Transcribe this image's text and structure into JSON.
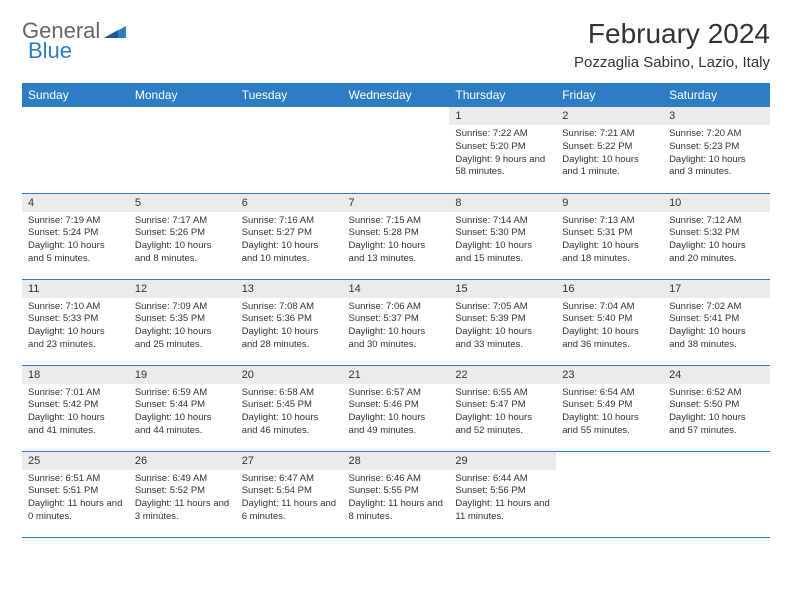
{
  "logo": {
    "part1": "General",
    "part2": "Blue"
  },
  "title": "February 2024",
  "location": "Pozzaglia Sabino, Lazio, Italy",
  "colors": {
    "header_bg": "#2d7dc4",
    "header_text": "#ffffff",
    "daynum_bg": "#ebebeb",
    "border": "#2d7dc4",
    "logo_gray": "#666666",
    "logo_blue": "#2d7dc4",
    "text": "#333333",
    "page_bg": "#ffffff"
  },
  "weekdays": [
    "Sunday",
    "Monday",
    "Tuesday",
    "Wednesday",
    "Thursday",
    "Friday",
    "Saturday"
  ],
  "weeks": [
    [
      {
        "empty": true
      },
      {
        "empty": true
      },
      {
        "empty": true
      },
      {
        "empty": true
      },
      {
        "n": "1",
        "sunrise": "7:22 AM",
        "sunset": "5:20 PM",
        "daylight": "9 hours and 58 minutes."
      },
      {
        "n": "2",
        "sunrise": "7:21 AM",
        "sunset": "5:22 PM",
        "daylight": "10 hours and 1 minute."
      },
      {
        "n": "3",
        "sunrise": "7:20 AM",
        "sunset": "5:23 PM",
        "daylight": "10 hours and 3 minutes."
      }
    ],
    [
      {
        "n": "4",
        "sunrise": "7:19 AM",
        "sunset": "5:24 PM",
        "daylight": "10 hours and 5 minutes."
      },
      {
        "n": "5",
        "sunrise": "7:17 AM",
        "sunset": "5:26 PM",
        "daylight": "10 hours and 8 minutes."
      },
      {
        "n": "6",
        "sunrise": "7:16 AM",
        "sunset": "5:27 PM",
        "daylight": "10 hours and 10 minutes."
      },
      {
        "n": "7",
        "sunrise": "7:15 AM",
        "sunset": "5:28 PM",
        "daylight": "10 hours and 13 minutes."
      },
      {
        "n": "8",
        "sunrise": "7:14 AM",
        "sunset": "5:30 PM",
        "daylight": "10 hours and 15 minutes."
      },
      {
        "n": "9",
        "sunrise": "7:13 AM",
        "sunset": "5:31 PM",
        "daylight": "10 hours and 18 minutes."
      },
      {
        "n": "10",
        "sunrise": "7:12 AM",
        "sunset": "5:32 PM",
        "daylight": "10 hours and 20 minutes."
      }
    ],
    [
      {
        "n": "11",
        "sunrise": "7:10 AM",
        "sunset": "5:33 PM",
        "daylight": "10 hours and 23 minutes."
      },
      {
        "n": "12",
        "sunrise": "7:09 AM",
        "sunset": "5:35 PM",
        "daylight": "10 hours and 25 minutes."
      },
      {
        "n": "13",
        "sunrise": "7:08 AM",
        "sunset": "5:36 PM",
        "daylight": "10 hours and 28 minutes."
      },
      {
        "n": "14",
        "sunrise": "7:06 AM",
        "sunset": "5:37 PM",
        "daylight": "10 hours and 30 minutes."
      },
      {
        "n": "15",
        "sunrise": "7:05 AM",
        "sunset": "5:39 PM",
        "daylight": "10 hours and 33 minutes."
      },
      {
        "n": "16",
        "sunrise": "7:04 AM",
        "sunset": "5:40 PM",
        "daylight": "10 hours and 36 minutes."
      },
      {
        "n": "17",
        "sunrise": "7:02 AM",
        "sunset": "5:41 PM",
        "daylight": "10 hours and 38 minutes."
      }
    ],
    [
      {
        "n": "18",
        "sunrise": "7:01 AM",
        "sunset": "5:42 PM",
        "daylight": "10 hours and 41 minutes."
      },
      {
        "n": "19",
        "sunrise": "6:59 AM",
        "sunset": "5:44 PM",
        "daylight": "10 hours and 44 minutes."
      },
      {
        "n": "20",
        "sunrise": "6:58 AM",
        "sunset": "5:45 PM",
        "daylight": "10 hours and 46 minutes."
      },
      {
        "n": "21",
        "sunrise": "6:57 AM",
        "sunset": "5:46 PM",
        "daylight": "10 hours and 49 minutes."
      },
      {
        "n": "22",
        "sunrise": "6:55 AM",
        "sunset": "5:47 PM",
        "daylight": "10 hours and 52 minutes."
      },
      {
        "n": "23",
        "sunrise": "6:54 AM",
        "sunset": "5:49 PM",
        "daylight": "10 hours and 55 minutes."
      },
      {
        "n": "24",
        "sunrise": "6:52 AM",
        "sunset": "5:50 PM",
        "daylight": "10 hours and 57 minutes."
      }
    ],
    [
      {
        "n": "25",
        "sunrise": "6:51 AM",
        "sunset": "5:51 PM",
        "daylight": "11 hours and 0 minutes."
      },
      {
        "n": "26",
        "sunrise": "6:49 AM",
        "sunset": "5:52 PM",
        "daylight": "11 hours and 3 minutes."
      },
      {
        "n": "27",
        "sunrise": "6:47 AM",
        "sunset": "5:54 PM",
        "daylight": "11 hours and 6 minutes."
      },
      {
        "n": "28",
        "sunrise": "6:46 AM",
        "sunset": "5:55 PM",
        "daylight": "11 hours and 8 minutes."
      },
      {
        "n": "29",
        "sunrise": "6:44 AM",
        "sunset": "5:56 PM",
        "daylight": "11 hours and 11 minutes."
      },
      {
        "empty": true
      },
      {
        "empty": true
      }
    ]
  ],
  "labels": {
    "sunrise": "Sunrise: ",
    "sunset": "Sunset: ",
    "daylight": "Daylight: "
  }
}
